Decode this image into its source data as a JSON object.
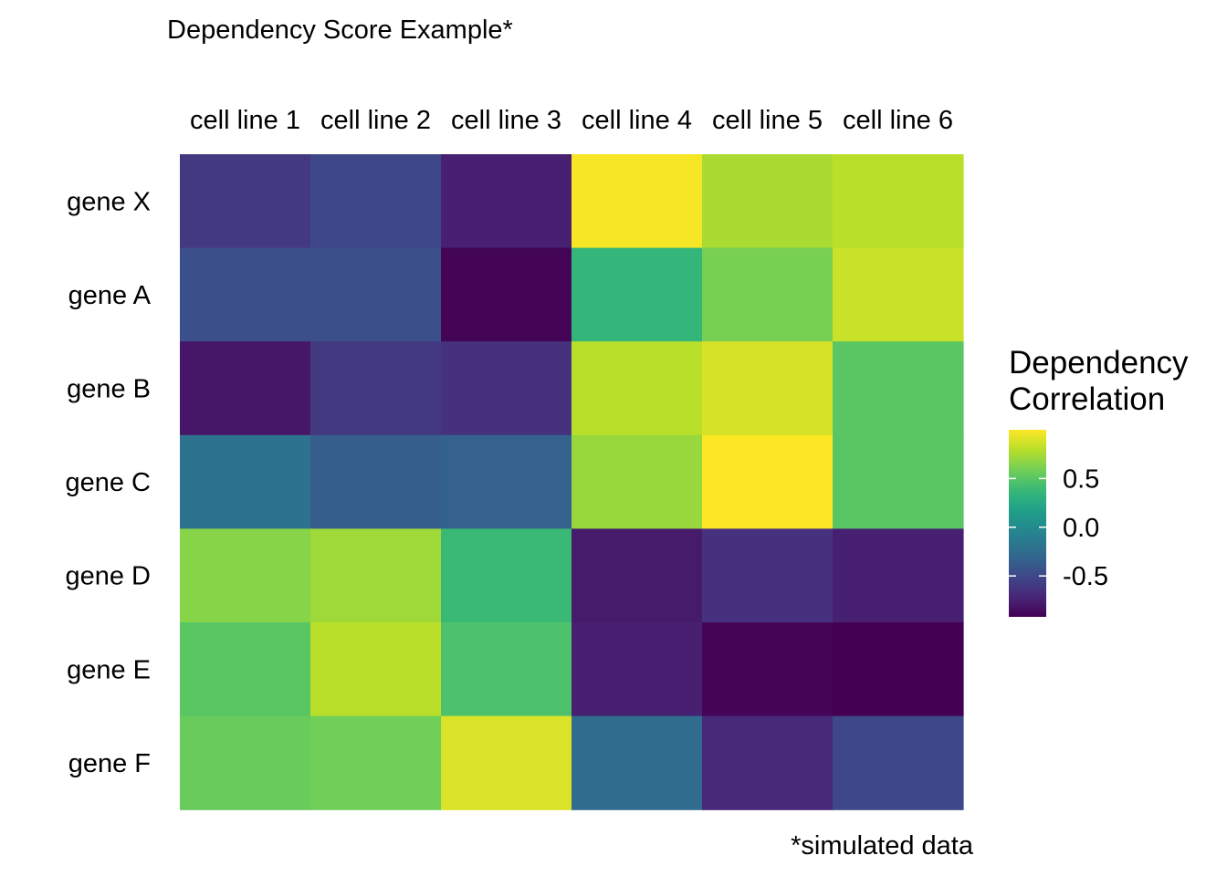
{
  "chart_data": {
    "type": "heatmap",
    "title": "Dependency Score Example*",
    "caption": "*simulated data",
    "columns": [
      "cell line 1",
      "cell line 2",
      "cell line 3",
      "cell line 4",
      "cell line 5",
      "cell line 6"
    ],
    "rows": [
      "gene X",
      "gene A",
      "gene B",
      "gene C",
      "gene D",
      "gene E",
      "gene F"
    ],
    "values": [
      [
        -0.6,
        -0.5,
        -0.75,
        0.98,
        0.75,
        0.8
      ],
      [
        -0.45,
        -0.45,
        -0.9,
        0.35,
        0.6,
        0.85
      ],
      [
        -0.8,
        -0.6,
        -0.65,
        0.8,
        0.88,
        0.5
      ],
      [
        -0.2,
        -0.35,
        -0.33,
        0.7,
        1.0,
        0.5
      ],
      [
        0.65,
        0.72,
        0.38,
        -0.78,
        -0.65,
        -0.75
      ],
      [
        0.5,
        0.8,
        0.45,
        -0.75,
        -0.9,
        -0.92
      ],
      [
        0.55,
        0.58,
        0.9,
        -0.25,
        -0.7,
        -0.5
      ]
    ],
    "legend": {
      "title_lines": [
        "Dependency",
        "Correlation"
      ],
      "ticks": [
        {
          "value": 0.5,
          "label": "0.5"
        },
        {
          "value": 0.0,
          "label": "0.0"
        },
        {
          "value": -0.5,
          "label": "-0.5"
        }
      ],
      "range": [
        -0.92,
        1.0
      ],
      "colormap": "viridis"
    },
    "grid": false
  }
}
